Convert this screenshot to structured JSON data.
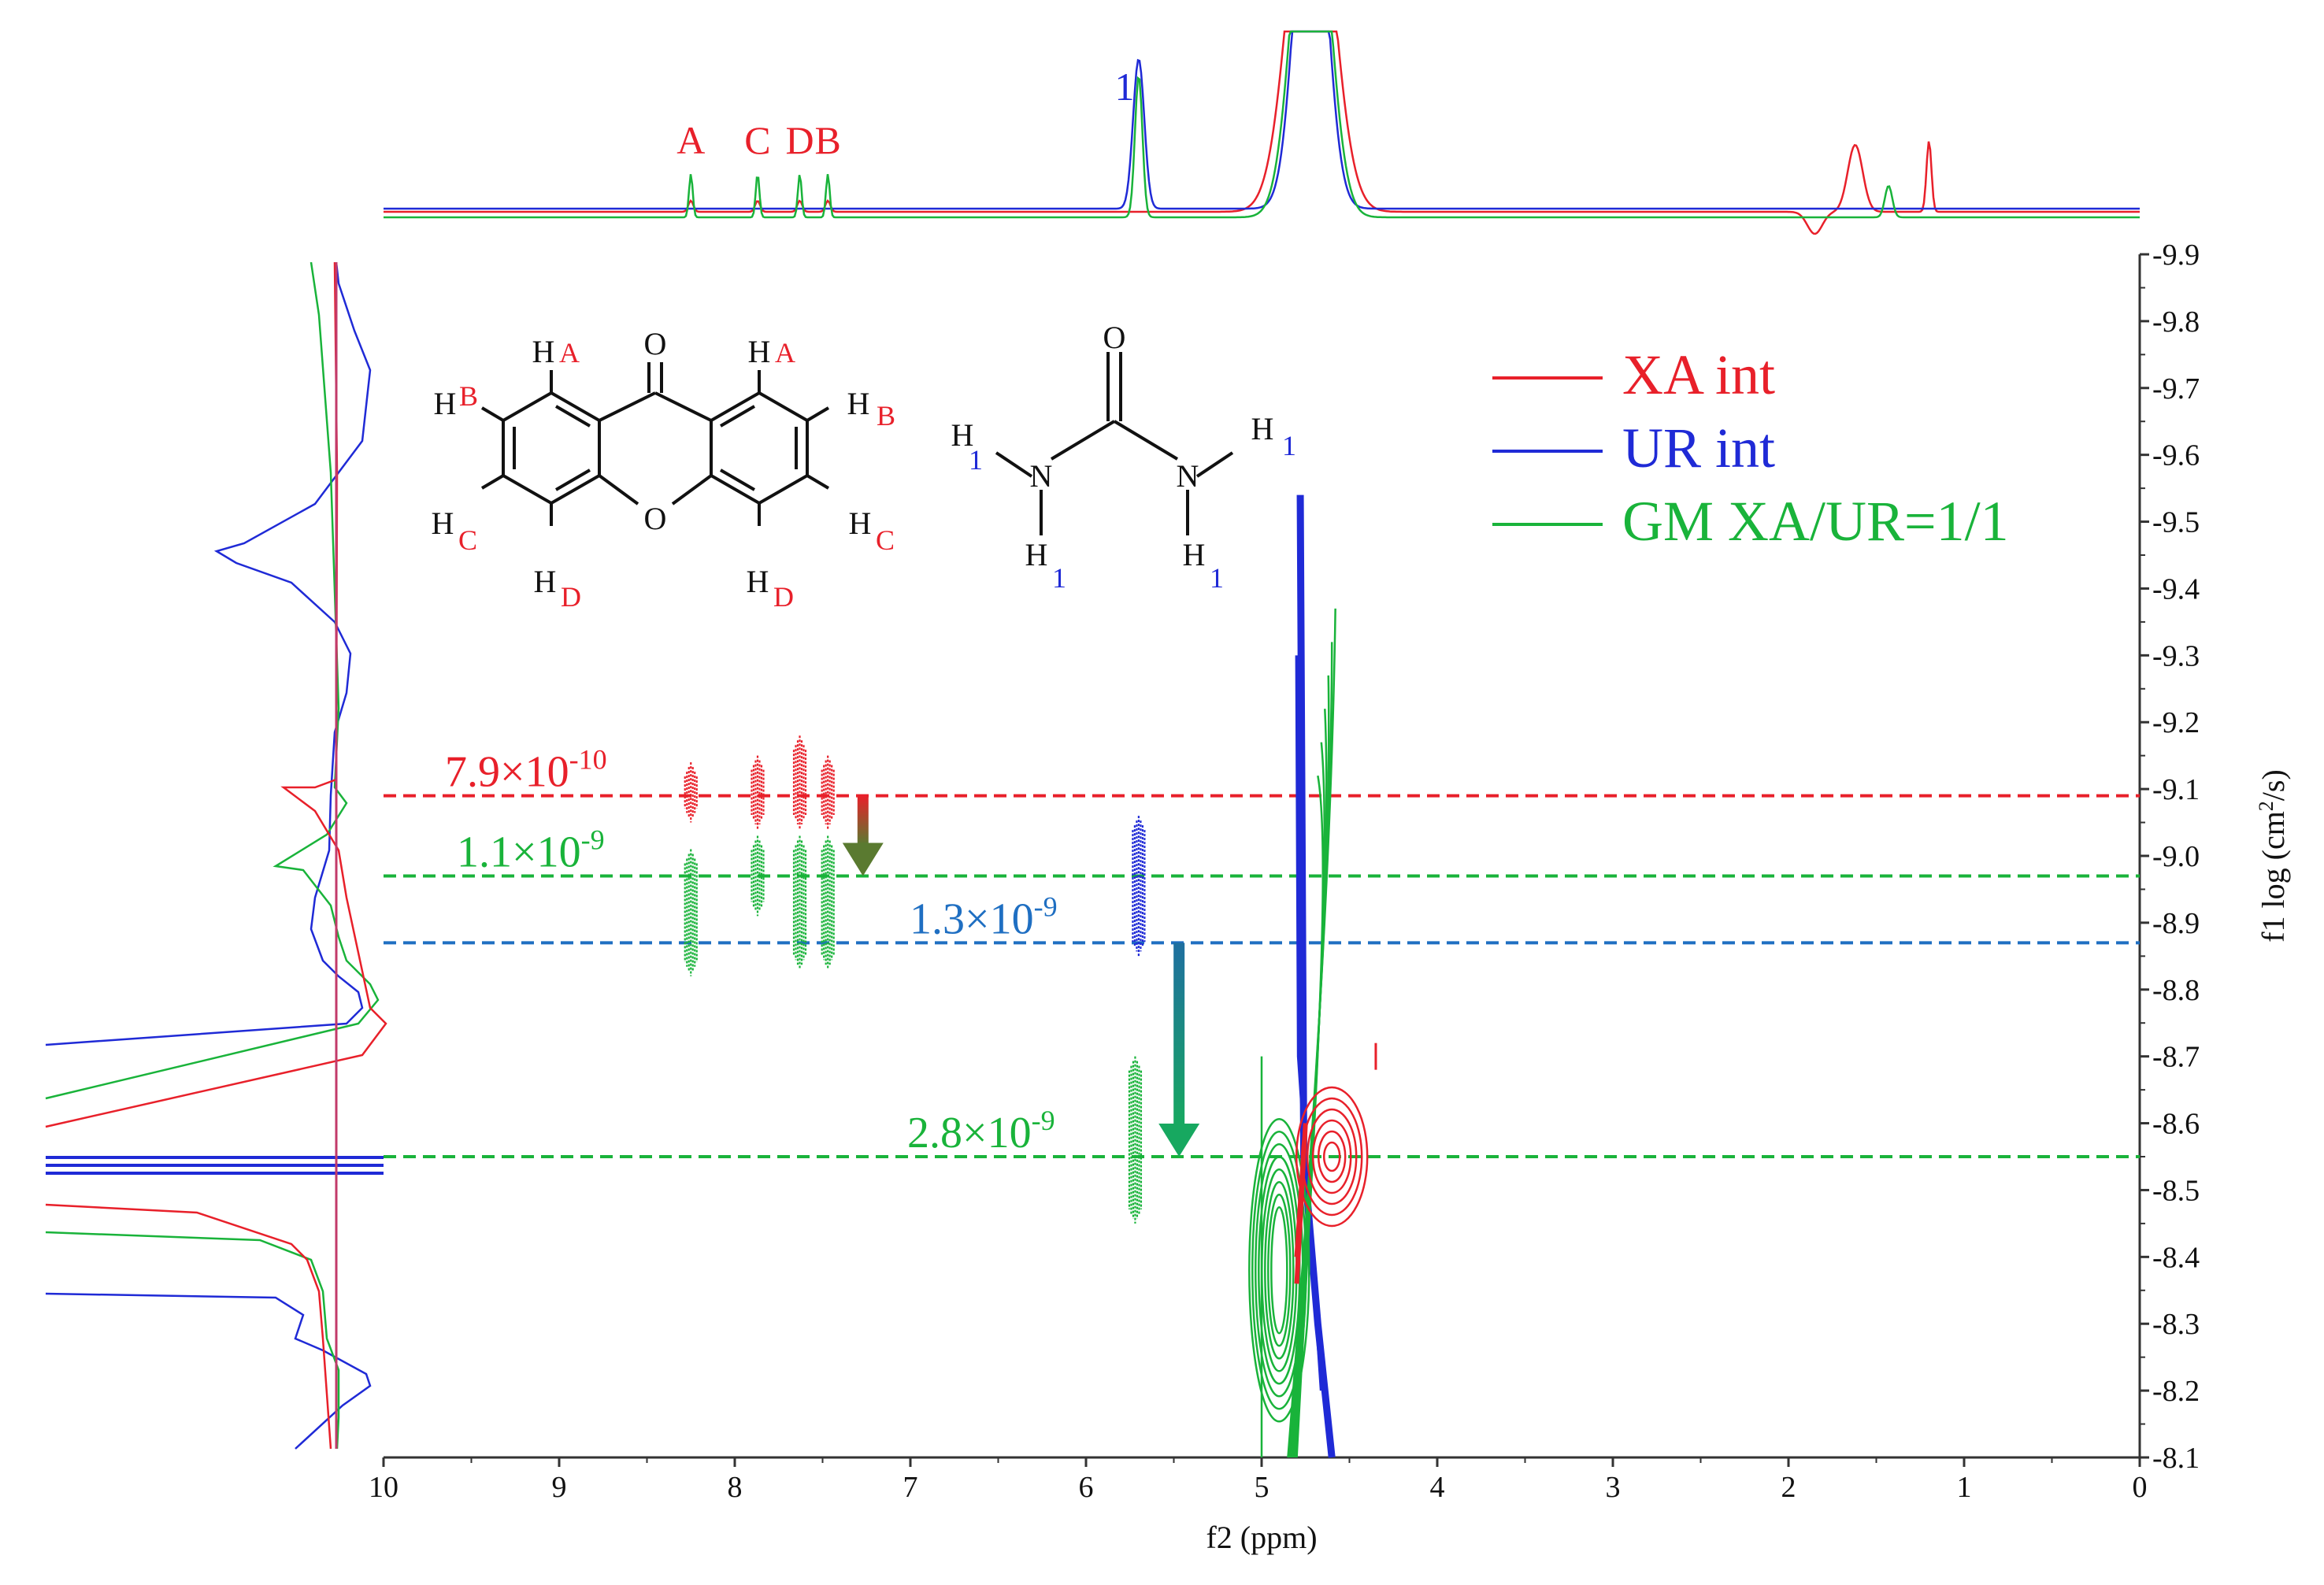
{
  "chart_data": {
    "type": "scatter",
    "subtype": "2D DOSY NMR",
    "xlabel": "f2 (ppm)",
    "ylabel": "f1 log (cm²/s)",
    "ylabel_main": "f1 log (cm",
    "ylabel_sup": "2",
    "ylabel_end": "/s)",
    "xlim": [
      10,
      0
    ],
    "ylim": [
      -9.9,
      -8.1
    ],
    "x_ticks": [
      {
        "v": 10,
        "label": "10"
      },
      {
        "v": 9,
        "label": "9"
      },
      {
        "v": 8,
        "label": "8"
      },
      {
        "v": 7,
        "label": "7"
      },
      {
        "v": 6,
        "label": "6"
      },
      {
        "v": 5,
        "label": "5"
      },
      {
        "v": 4,
        "label": "4"
      },
      {
        "v": 3,
        "label": "3"
      },
      {
        "v": 2,
        "label": "2"
      },
      {
        "v": 1,
        "label": "1"
      },
      {
        "v": 0,
        "label": "0"
      }
    ],
    "y_ticks": [
      {
        "v": -9.9,
        "label": "-9.9"
      },
      {
        "v": -9.8,
        "label": "-9.8"
      },
      {
        "v": -9.7,
        "label": "-9.7"
      },
      {
        "v": -9.6,
        "label": "-9.6"
      },
      {
        "v": -9.5,
        "label": "-9.5"
      },
      {
        "v": -9.4,
        "label": "-9.4"
      },
      {
        "v": -9.3,
        "label": "-9.3"
      },
      {
        "v": -9.2,
        "label": "-9.2"
      },
      {
        "v": -9.1,
        "label": "-9.1"
      },
      {
        "v": -9.0,
        "label": "-9.0"
      },
      {
        "v": -8.9,
        "label": "-8.9"
      },
      {
        "v": -8.8,
        "label": "-8.8"
      },
      {
        "v": -8.7,
        "label": "-8.7"
      },
      {
        "v": -8.6,
        "label": "-8.6"
      },
      {
        "v": -8.5,
        "label": "-8.5"
      },
      {
        "v": -8.4,
        "label": "-8.4"
      },
      {
        "v": -8.3,
        "label": "-8.3"
      },
      {
        "v": -8.2,
        "label": "-8.2"
      },
      {
        "v": -8.1,
        "label": "-8.1"
      }
    ],
    "series": [
      {
        "name": "XA int",
        "color": "#e8202a"
      },
      {
        "name": "UR int",
        "color": "#1f2ad6"
      },
      {
        "name": "GM XA/UR=1/1",
        "color": "#19b33a"
      }
    ],
    "reference_lines": [
      {
        "y": -9.09,
        "color": "#e8202a",
        "base": "7.9×10",
        "exp": "-10"
      },
      {
        "y": -8.97,
        "color": "#19b33a",
        "base": "1.1×10",
        "exp": "-9"
      },
      {
        "y": -8.87,
        "color": "#1f6fc2",
        "base": "1.3×10",
        "exp": "-9"
      },
      {
        "y": -8.55,
        "color": "#19b33a",
        "base": "2.8×10",
        "exp": "-9"
      }
    ],
    "peak_labels": [
      {
        "x": 8.25,
        "text": "A",
        "color": "#e8202a"
      },
      {
        "x": 7.87,
        "text": "C",
        "color": "#e8202a"
      },
      {
        "x": 7.63,
        "text": "D",
        "color": "#e8202a"
      },
      {
        "x": 7.47,
        "text": "B",
        "color": "#e8202a"
      },
      {
        "x": 5.78,
        "text": "1",
        "color": "#1f2ad6"
      }
    ],
    "cross_peaks": [
      {
        "x": 8.25,
        "y_range": [
          -9.14,
          -9.05
        ],
        "color": "#e8202a"
      },
      {
        "x": 7.87,
        "y_range": [
          -9.15,
          -9.04
        ],
        "color": "#e8202a"
      },
      {
        "x": 7.63,
        "y_range": [
          -9.18,
          -9.04
        ],
        "color": "#e8202a"
      },
      {
        "x": 7.47,
        "y_range": [
          -9.15,
          -9.04
        ],
        "color": "#e8202a"
      },
      {
        "x": 8.25,
        "y_range": [
          -9.01,
          -8.82
        ],
        "color": "#19b33a"
      },
      {
        "x": 7.87,
        "y_range": [
          -9.03,
          -8.91
        ],
        "color": "#19b33a"
      },
      {
        "x": 7.63,
        "y_range": [
          -9.03,
          -8.83
        ],
        "color": "#19b33a"
      },
      {
        "x": 7.47,
        "y_range": [
          -9.03,
          -8.83
        ],
        "color": "#19b33a"
      },
      {
        "x": 5.7,
        "y_range": [
          -9.06,
          -8.85
        ],
        "color": "#1f2ad6"
      },
      {
        "x": 5.72,
        "y_range": [
          -8.7,
          -8.45
        ],
        "color": "#19b33a"
      }
    ],
    "arrows": [
      {
        "x": 7.27,
        "y_from": -9.09,
        "y_to": -8.97,
        "color_from": "#e8202a",
        "color_to": "#5a7a30"
      },
      {
        "x": 5.47,
        "y_from": -8.87,
        "y_to": -8.55,
        "color_from": "#1f6fa0",
        "color_to": "#17a860"
      }
    ]
  },
  "molecules": {
    "xanthone": {
      "O_top": "O",
      "O_ring": "O",
      "H": "H",
      "A": "A",
      "B": "B",
      "C": "C",
      "D": "D"
    },
    "urea": {
      "O": "O",
      "N": "N",
      "H": "H",
      "idx": "1"
    }
  }
}
